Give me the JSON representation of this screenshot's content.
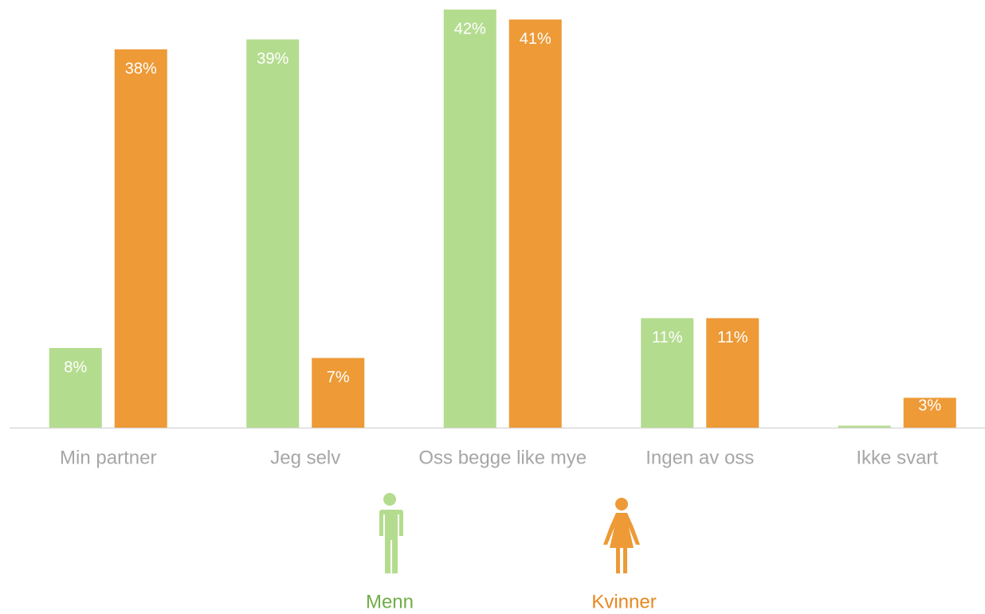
{
  "chart_data": {
    "type": "bar",
    "categories": [
      "Min partner",
      "Jeg selv",
      "Oss begge like mye",
      "Ingen av oss",
      "Ikke svart"
    ],
    "series": [
      {
        "name": "Menn",
        "color": "#b4dc8f",
        "legend_color": "#70ad47",
        "values": [
          8,
          39,
          42,
          11,
          0.2
        ],
        "value_labels": [
          "8%",
          "39%",
          "42%",
          "11%",
          null
        ]
      },
      {
        "name": "Kvinner",
        "color": "#ed9a37",
        "legend_color": "#e8871e",
        "values": [
          38,
          7,
          41,
          11,
          3
        ],
        "value_labels": [
          "38%",
          "7%",
          "41%",
          "11%",
          "3%"
        ]
      }
    ]
  }
}
